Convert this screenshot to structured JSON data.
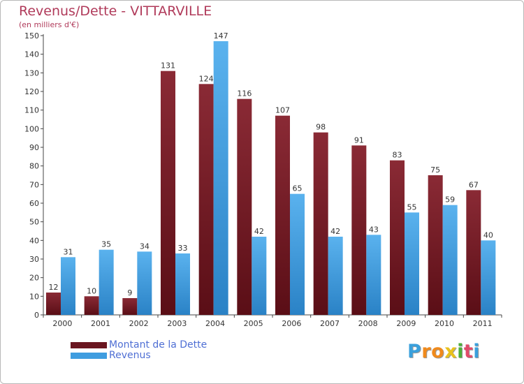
{
  "chart_data": {
    "type": "bar",
    "title": "Revenus/Dette - VITTARVILLE",
    "subtitle": "(en milliers d'€)",
    "categories": [
      "2000",
      "2001",
      "2002",
      "2003",
      "2004",
      "2005",
      "2006",
      "2007",
      "2008",
      "2009",
      "2010",
      "2011"
    ],
    "series": [
      {
        "name": "Montant de la Dette",
        "color": "#7a1f2b",
        "values": [
          12,
          10,
          9,
          131,
          124,
          116,
          107,
          98,
          91,
          83,
          75,
          67
        ]
      },
      {
        "name": "Revenus",
        "color": "#3f9de0",
        "values": [
          31,
          35,
          34,
          33,
          147,
          42,
          65,
          42,
          43,
          55,
          59,
          40
        ]
      }
    ],
    "ylim": [
      0,
      150
    ],
    "yticks": [
      0,
      10,
      20,
      30,
      40,
      50,
      60,
      70,
      80,
      90,
      100,
      110,
      120,
      130,
      140,
      150
    ],
    "grid": false,
    "legend_position": "bottom-left"
  },
  "logo": {
    "letters": [
      "P",
      "r",
      "o",
      "x",
      "i",
      "t",
      "i"
    ],
    "colors": [
      "#3aa0dc",
      "#f08a1c",
      "#f08a1c",
      "#e9c21d",
      "#4caf3a",
      "#e14b6a",
      "#3aa0dc"
    ]
  }
}
